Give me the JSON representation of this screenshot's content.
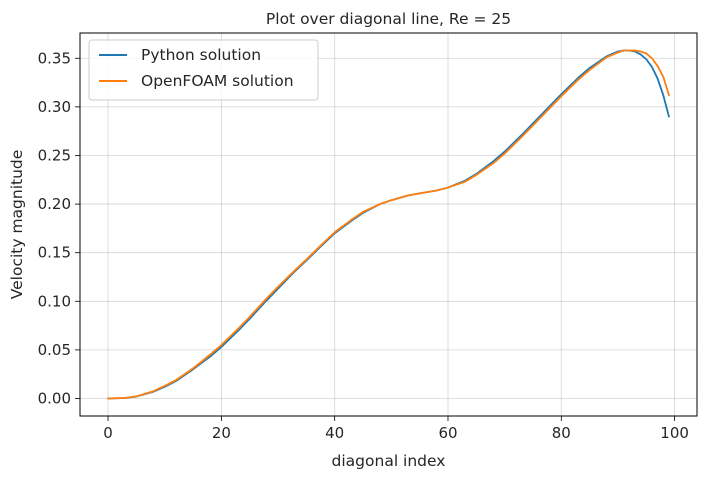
{
  "chart_data": {
    "type": "line",
    "title": "Plot over diagonal line, Re = 25",
    "xlabel": "diagonal index",
    "ylabel": "Velocity magnitude",
    "xlim": [
      -4.95,
      103.95
    ],
    "ylim": [
      -0.018,
      0.376
    ],
    "xticks": [
      0,
      20,
      40,
      60,
      80,
      100
    ],
    "yticks": [
      0.0,
      0.05,
      0.1,
      0.15,
      0.2,
      0.25,
      0.3,
      0.35
    ],
    "xtick_labels": [
      "0",
      "20",
      "40",
      "60",
      "80",
      "100"
    ],
    "ytick_labels": [
      "0.00",
      "0.05",
      "0.10",
      "0.15",
      "0.20",
      "0.25",
      "0.30",
      "0.35"
    ],
    "grid": true,
    "legend_position": "upper-left",
    "series": [
      {
        "name": "Python solution",
        "color": "#1f77b4",
        "x": [
          0,
          3,
          5,
          8,
          10,
          12,
          15,
          18,
          20,
          23,
          25,
          28,
          30,
          33,
          35,
          38,
          40,
          43,
          45,
          48,
          50,
          53,
          55,
          58,
          60,
          63,
          65,
          68,
          70,
          73,
          75,
          78,
          80,
          83,
          85,
          88,
          90,
          91,
          92,
          93,
          94,
          95,
          96,
          97,
          98,
          99
        ],
        "y": [
          0.0,
          0.0005,
          0.002,
          0.007,
          0.012,
          0.018,
          0.03,
          0.043,
          0.053,
          0.07,
          0.082,
          0.101,
          0.113,
          0.131,
          0.142,
          0.159,
          0.17,
          0.183,
          0.191,
          0.2,
          0.204,
          0.209,
          0.211,
          0.214,
          0.217,
          0.224,
          0.231,
          0.244,
          0.254,
          0.271,
          0.283,
          0.301,
          0.313,
          0.33,
          0.34,
          0.352,
          0.357,
          0.358,
          0.358,
          0.357,
          0.354,
          0.349,
          0.341,
          0.329,
          0.312,
          0.29
        ]
      },
      {
        "name": "OpenFOAM solution",
        "color": "#ff7f0e",
        "x": [
          0,
          3,
          5,
          8,
          10,
          12,
          15,
          18,
          20,
          23,
          25,
          28,
          30,
          33,
          35,
          38,
          40,
          43,
          45,
          48,
          50,
          53,
          55,
          58,
          60,
          63,
          65,
          68,
          70,
          73,
          75,
          78,
          80,
          83,
          85,
          88,
          90,
          91,
          92,
          93,
          94,
          95,
          96,
          97,
          98,
          99
        ],
        "y": [
          0.0,
          0.0006,
          0.0022,
          0.0075,
          0.013,
          0.019,
          0.031,
          0.045,
          0.055,
          0.072,
          0.084,
          0.103,
          0.115,
          0.132,
          0.143,
          0.16,
          0.171,
          0.184,
          0.192,
          0.2,
          0.204,
          0.209,
          0.211,
          0.214,
          0.217,
          0.223,
          0.23,
          0.242,
          0.252,
          0.269,
          0.281,
          0.299,
          0.311,
          0.328,
          0.338,
          0.351,
          0.356,
          0.358,
          0.358,
          0.358,
          0.357,
          0.355,
          0.35,
          0.342,
          0.331,
          0.312
        ]
      }
    ]
  }
}
